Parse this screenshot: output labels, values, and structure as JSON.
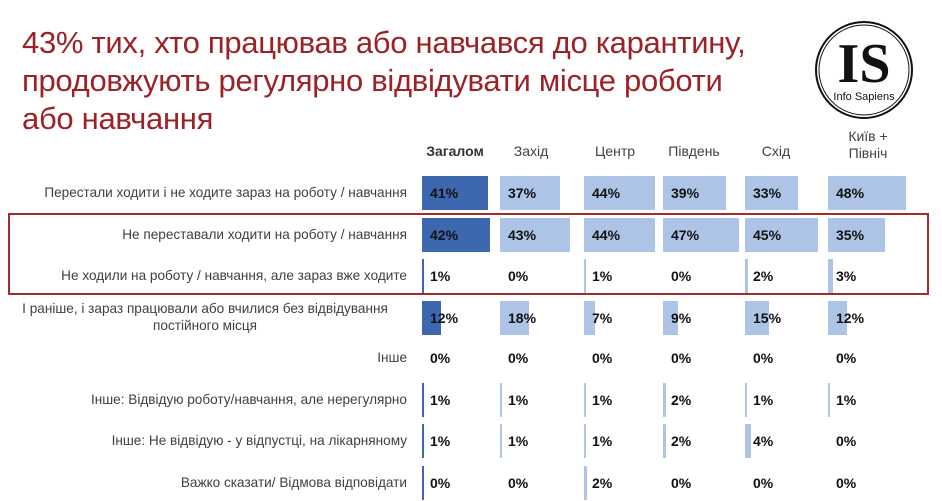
{
  "title": "43% тих, хто працював або навчався до карантину, продовжують регулярно відвідувати місце роботи або навчання",
  "logo": {
    "letters": "IS",
    "caption": "Info Sapiens"
  },
  "colors": {
    "title": "#9b2226",
    "overall_bar": "#3d68b0",
    "region_bar": "#aec4e6",
    "highlight_box": "#a52a2a"
  },
  "columns": [
    {
      "label": "Загалом",
      "bold": true
    },
    {
      "label": "Захід"
    },
    {
      "label": "Центр"
    },
    {
      "label": "Південь"
    },
    {
      "label": "Схід"
    },
    {
      "label": "Київ + Північ"
    }
  ],
  "rows": [
    {
      "label": "Перестали ходити і не ходите зараз на роботу / навчання",
      "values": [
        "41%",
        "37%",
        "44%",
        "39%",
        "33%",
        "48%"
      ]
    },
    {
      "label": "Не переставали ходити на роботу / навчання",
      "values": [
        "42%",
        "43%",
        "44%",
        "47%",
        "45%",
        "35%"
      ]
    },
    {
      "label": "Не ходили на роботу / навчання, але зараз вже ходите",
      "values": [
        "1%",
        "0%",
        "1%",
        "0%",
        "2%",
        "3%"
      ]
    },
    {
      "label": "І раніше, і зараз працювали або вчилися без відвідування постійного місця",
      "values": [
        "12%",
        "18%",
        "7%",
        "9%",
        "15%",
        "12%"
      ]
    },
    {
      "label": "Інше",
      "values": [
        "0%",
        "0%",
        "0%",
        "0%",
        "0%",
        "0%"
      ]
    },
    {
      "label": "Інше: Відвідую роботу/навчання, але нерегулярно",
      "values": [
        "1%",
        "1%",
        "1%",
        "2%",
        "1%",
        "1%"
      ]
    },
    {
      "label": "Інше: Не відвідую - у відпустці, на лікарняному",
      "values": [
        "1%",
        "1%",
        "1%",
        "2%",
        "4%",
        "0%"
      ]
    },
    {
      "label": "Важко сказати/ Відмова відповідати",
      "values": [
        "0%",
        "0%",
        "2%",
        "0%",
        "0%",
        "0%"
      ]
    }
  ],
  "chart_data": {
    "type": "table",
    "title": "43% тих, хто працював або навчався до карантину, продовжують регулярно відвідувати місце роботи або навчання",
    "categories": [
      "Перестали ходити і не ходите зараз на роботу / навчання",
      "Не переставали ходити на роботу / навчання",
      "Не ходили на роботу / навчання, але зараз вже ходите",
      "І раніше, і зараз працювали або вчилися без відвідування постійного місця",
      "Інше",
      "Інше: Відвідую роботу/навчання, але нерегулярно",
      "Інше: Не відвідую - у відпустці, на лікарняному",
      "Важко сказати/ Відмова відповідати"
    ],
    "series": [
      {
        "name": "Загалом",
        "values": [
          41,
          42,
          1,
          12,
          0,
          1,
          1,
          0
        ]
      },
      {
        "name": "Захід",
        "values": [
          37,
          43,
          0,
          18,
          0,
          1,
          1,
          0
        ]
      },
      {
        "name": "Центр",
        "values": [
          44,
          44,
          1,
          7,
          0,
          1,
          1,
          2
        ]
      },
      {
        "name": "Південь",
        "values": [
          39,
          47,
          0,
          9,
          0,
          2,
          2,
          0
        ]
      },
      {
        "name": "Схід",
        "values": [
          33,
          45,
          2,
          15,
          0,
          1,
          4,
          0
        ]
      },
      {
        "name": "Київ + Північ",
        "values": [
          48,
          35,
          3,
          12,
          0,
          1,
          0,
          0
        ]
      }
    ],
    "unit": "%",
    "annotations": [
      "Rows 2–3 highlighted with red outline"
    ],
    "legend": "none"
  }
}
